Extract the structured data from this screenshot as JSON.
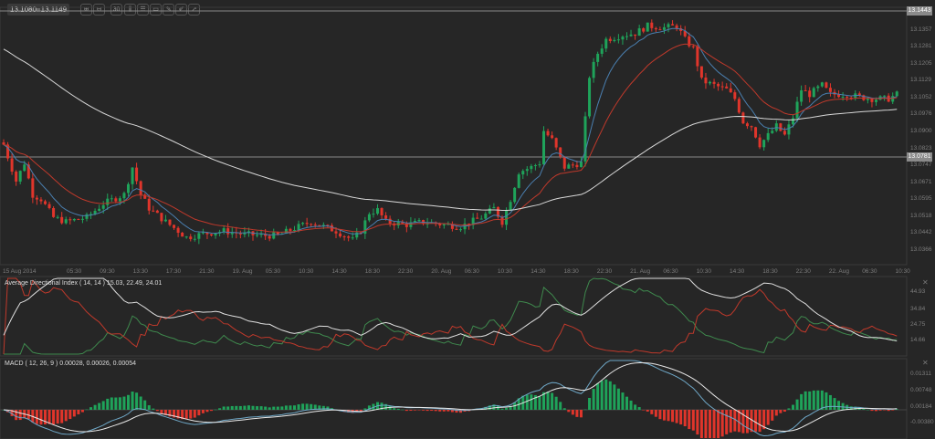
{
  "toolbar": {
    "bid": "13.1080",
    "ask": "13.1149",
    "icons": [
      "zoom-in-icon",
      "zoom-out-icon",
      "timeframe-icon",
      "candles-icon",
      "indicators-icon",
      "chart-window-icon",
      "tag-icon",
      "edit-icon",
      "draw-icon"
    ],
    "timeframe_label": "30"
  },
  "colors": {
    "background": "#262626",
    "up": "#1fa35a",
    "down": "#e0352b",
    "ma_fast": "#4a7fb0",
    "ma_slow": "#c0392b",
    "ma_long": "#d8d8d8"
  },
  "price_axis": {
    "ticks": [
      "13.1357",
      "13.1281",
      "13.1205",
      "13.1129",
      "13.1052",
      "13.0976",
      "13.0900",
      "13.0823",
      "13.0747",
      "13.0671",
      "13.0595",
      "13.0518",
      "13.0442",
      "13.0366"
    ],
    "high_line": "13.1443",
    "current_line": "13.0781"
  },
  "time_axis": [
    "15 Aug 2014",
    "05:30",
    "09:30",
    "13:30",
    "17:30",
    "21:30",
    "19. Aug",
    "05:30",
    "10:30",
    "14:30",
    "18:30",
    "22:30",
    "20. Aug",
    "06:30",
    "10:30",
    "14:30",
    "18:30",
    "22:30",
    "21. Aug",
    "06:30",
    "10:30",
    "14:30",
    "18:30",
    "22:30",
    "22. Aug",
    "06:30",
    "10:30"
  ],
  "adx": {
    "label": "Average Directional Index ( 14, 14 ) 15.03, 22.49, 24.01",
    "ticks": [
      "44.93",
      "34.84",
      "24.75",
      "14.66"
    ]
  },
  "macd": {
    "label": "MACD ( 12, 26, 9 ) 0.00028, 0.00026, 0.00054",
    "ticks": [
      "0.01311",
      "0.00748",
      "0.00184",
      "-0.00380"
    ]
  },
  "chart_data": {
    "type": "candlestick",
    "instrument_timeframe": "30 min",
    "close_anchors": [
      [
        0,
        13.0841
      ],
      [
        3,
        13.0677
      ],
      [
        5,
        13.0759
      ],
      [
        7,
        13.0615
      ],
      [
        9,
        13.0595
      ],
      [
        12,
        13.0513
      ],
      [
        15,
        13.0493
      ],
      [
        20,
        13.0513
      ],
      [
        24,
        13.0575
      ],
      [
        29,
        13.0616
      ],
      [
        31,
        13.0739
      ],
      [
        33,
        13.0616
      ],
      [
        35,
        13.0554
      ],
      [
        39,
        13.0493
      ],
      [
        42,
        13.0452
      ],
      [
        44,
        13.0423
      ],
      [
        48,
        13.0439
      ],
      [
        53,
        13.0452
      ],
      [
        57,
        13.0439
      ],
      [
        62,
        13.0431
      ],
      [
        66,
        13.0431
      ],
      [
        70,
        13.0464
      ],
      [
        74,
        13.0493
      ],
      [
        77,
        13.0472
      ],
      [
        80,
        13.0452
      ],
      [
        84,
        13.0411
      ],
      [
        86,
        13.0452
      ],
      [
        88,
        13.0534
      ],
      [
        90,
        13.0546
      ],
      [
        92,
        13.0493
      ],
      [
        97,
        13.048
      ],
      [
        101,
        13.0493
      ],
      [
        106,
        13.048
      ],
      [
        110,
        13.0472
      ],
      [
        115,
        13.0513
      ],
      [
        118,
        13.0554
      ],
      [
        120,
        13.0493
      ],
      [
        122,
        13.0595
      ],
      [
        124,
        13.0718
      ],
      [
        127,
        13.0739
      ],
      [
        129,
        13.0759
      ],
      [
        130,
        13.0903
      ],
      [
        132,
        13.0862
      ],
      [
        135,
        13.0739
      ],
      [
        139,
        13.0759
      ],
      [
        141,
        13.1149
      ],
      [
        143,
        13.1252
      ],
      [
        145,
        13.1314
      ],
      [
        149,
        13.1334
      ],
      [
        152,
        13.1342
      ],
      [
        155,
        13.1375
      ],
      [
        159,
        13.1367
      ],
      [
        162,
        13.1375
      ],
      [
        164,
        13.1314
      ],
      [
        166,
        13.1273
      ],
      [
        168,
        13.1129
      ],
      [
        171,
        13.1108
      ],
      [
        174,
        13.1088
      ],
      [
        176,
        13.1047
      ],
      [
        178,
        13.0944
      ],
      [
        180,
        13.0924
      ],
      [
        182,
        13.0841
      ],
      [
        184,
        13.0882
      ],
      [
        186,
        13.0924
      ],
      [
        188,
        13.0882
      ],
      [
        190,
        13.0964
      ],
      [
        192,
        13.1088
      ],
      [
        194,
        13.1067
      ],
      [
        197,
        13.1108
      ],
      [
        199,
        13.1067
      ],
      [
        203,
        13.1067
      ],
      [
        206,
        13.1055
      ],
      [
        209,
        13.1047
      ],
      [
        213,
        13.1047
      ],
      [
        215,
        13.1067
      ]
    ],
    "moving_averages": [
      "fast",
      "slow",
      "long"
    ],
    "ylim": [
      13.033,
      13.148
    ]
  }
}
